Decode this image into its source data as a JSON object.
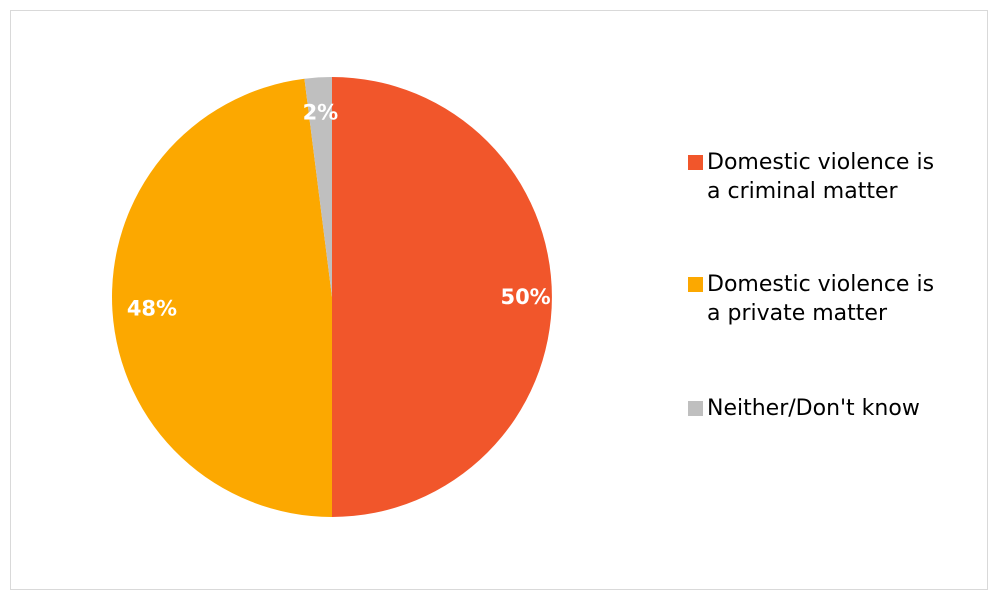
{
  "chart_data": {
    "type": "pie",
    "title": "",
    "series": [
      {
        "values": [
          50,
          48,
          2
        ]
      }
    ],
    "categories": [
      "Domestic violence is a criminal matter",
      "Domestic violence is a private matter",
      "Neither/Don't know"
    ],
    "data_labels": [
      "50%",
      "48%",
      "2%"
    ],
    "colors": [
      "#F1562B",
      "#FCA800",
      "#BFBFBF"
    ],
    "start_angle_deg": 0,
    "direction": "clockwise",
    "legend_position": "right"
  },
  "legend": {
    "items": [
      {
        "label": "Domestic violence is\na criminal matter",
        "color": "#F1562B"
      },
      {
        "label": "Domestic violence is\na private matter",
        "color": "#FCA800"
      },
      {
        "label": "Neither/Don't know",
        "color": "#BFBFBF"
      }
    ]
  }
}
